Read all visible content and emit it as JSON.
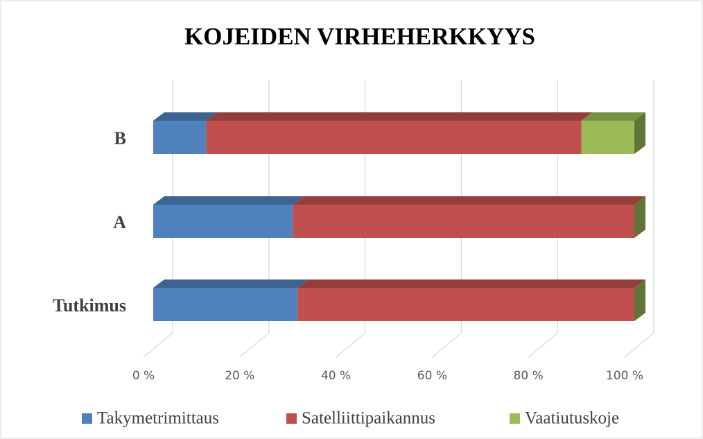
{
  "chart_data": {
    "type": "bar3d_stacked_horizontal",
    "title": "KOJEIDEN VIRHEHERKKYYS",
    "categories": [
      "Tutkimus",
      "A",
      "B"
    ],
    "series": [
      {
        "name": "Takymetrimittaus",
        "color": "#4f81bd",
        "values": [
          30,
          29,
          11
        ]
      },
      {
        "name": "Satelliittipaikannus",
        "color": "#c0504d",
        "values": [
          70,
          71,
          78
        ]
      },
      {
        "name": "Vaatiutuskoje",
        "color": "#9bbb59",
        "values": [
          0,
          0,
          11
        ]
      }
    ],
    "xlim": [
      0,
      100
    ],
    "xticks": [
      {
        "value": 0,
        "label": "0 %"
      },
      {
        "value": 20,
        "label": "20 %"
      },
      {
        "value": 40,
        "label": "40 %"
      },
      {
        "value": 60,
        "label": "60 %"
      },
      {
        "value": 80,
        "label": "80 %"
      },
      {
        "value": 100,
        "label": "100 %"
      }
    ],
    "grid": true,
    "legend": "bottom"
  }
}
